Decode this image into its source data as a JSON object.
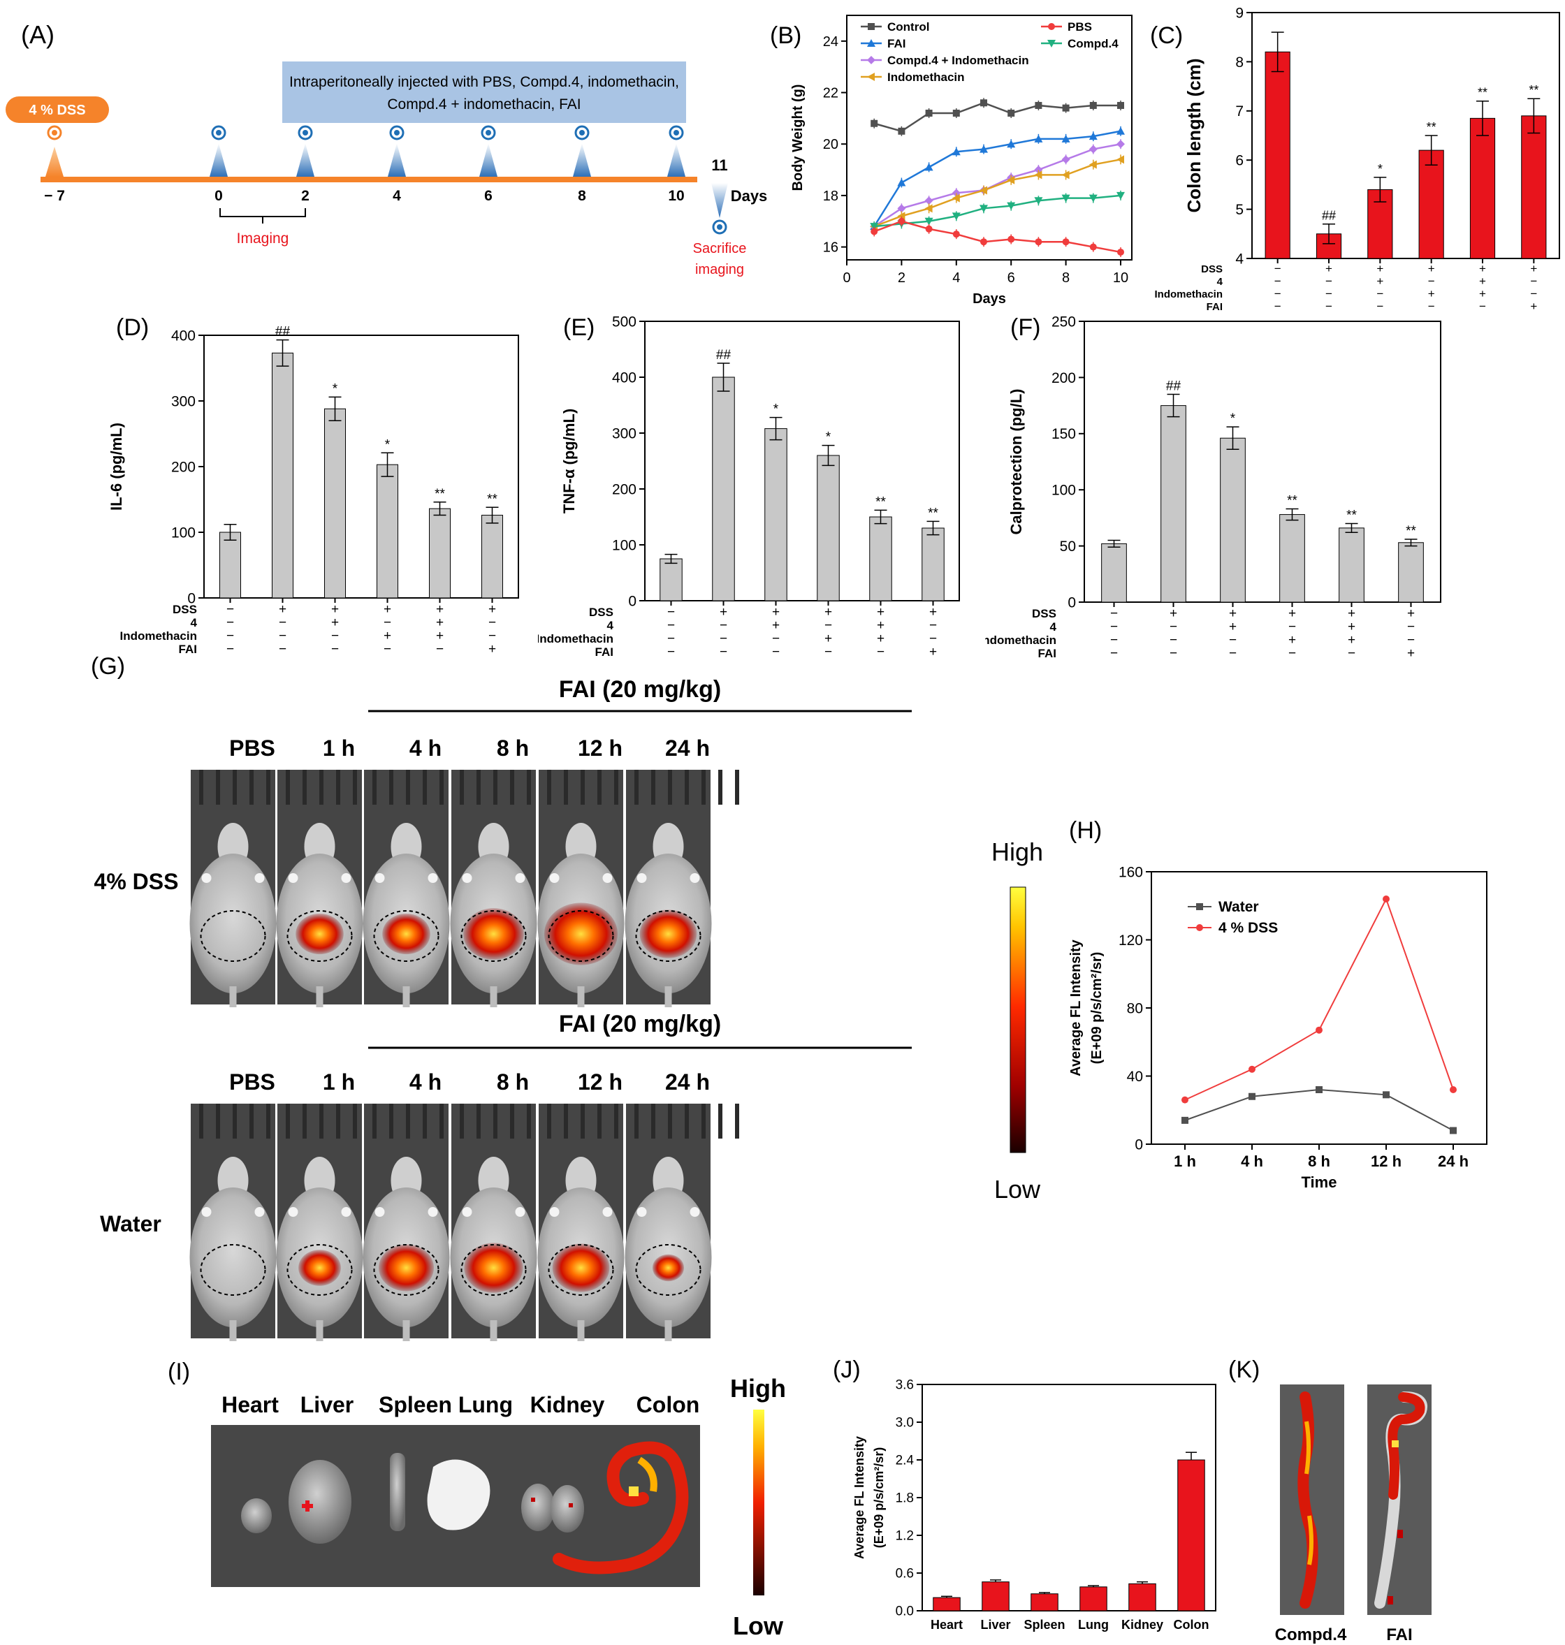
{
  "panel_labels": {
    "A": "(A)",
    "B": "(B)",
    "C": "(C)",
    "D": "(D)",
    "E": "(E)",
    "F": "(F)",
    "G": "(G)",
    "H": "(H)",
    "I": "(I)",
    "J": "(J)",
    "K": "(K)"
  },
  "panel_a": {
    "dss_label": "4 % DSS",
    "injection_text_1": "Intraperitoneally injected with PBS, Compd.4, indomethacin,",
    "injection_text_2": "Compd.4 + indomethacin, FAI",
    "ticks": [
      "− 7",
      "0",
      "2",
      "4",
      "6",
      "8",
      "10"
    ],
    "day11": "11",
    "days_label": "Days",
    "imaging_label": "Imaging",
    "sacrifice_1": "Sacrifice",
    "sacrifice_2": "imaging",
    "colors": {
      "timeline": "#f5832a",
      "marker": "#1f6fb5",
      "box": "#a9c4e4",
      "imaging": "#e8141c"
    }
  },
  "chart_data": [
    {
      "id": "B",
      "type": "line",
      "xlabel": "Days",
      "ylabel": "Body Weight (g)",
      "xlim": [
        0,
        10
      ],
      "ylim": [
        15.5,
        25
      ],
      "xticks": [
        0,
        2,
        4,
        6,
        8,
        10
      ],
      "yticks": [
        16,
        18,
        20,
        22,
        24
      ],
      "x": [
        1,
        2,
        3,
        4,
        5,
        6,
        7,
        8,
        9,
        10
      ],
      "legend": [
        "Control",
        "PBS",
        "FAI",
        "Compd.4",
        "Compd.4 + Indomethacin",
        "Indomethacin"
      ],
      "series": [
        {
          "name": "Control",
          "color": "#505050",
          "marker": "square",
          "values": [
            20.8,
            20.5,
            21.2,
            21.2,
            21.6,
            21.2,
            21.5,
            21.4,
            21.5,
            21.5
          ]
        },
        {
          "name": "FAI",
          "color": "#1f78d8",
          "marker": "triangle-up",
          "values": [
            16.8,
            18.5,
            19.1,
            19.7,
            19.8,
            20.0,
            20.2,
            20.2,
            20.3,
            20.5
          ]
        },
        {
          "name": "Compd.4 + Indomethacin",
          "color": "#b57ae8",
          "marker": "diamond",
          "values": [
            16.8,
            17.5,
            17.8,
            18.1,
            18.2,
            18.7,
            19.0,
            19.4,
            19.8,
            20.0
          ]
        },
        {
          "name": "Indomethacin",
          "color": "#e0a020",
          "marker": "triangle-left",
          "values": [
            16.8,
            17.2,
            17.5,
            17.9,
            18.2,
            18.6,
            18.8,
            18.8,
            19.2,
            19.4
          ]
        },
        {
          "name": "Compd.4",
          "color": "#20b080",
          "marker": "triangle-down",
          "values": [
            16.8,
            16.9,
            17.0,
            17.2,
            17.5,
            17.6,
            17.8,
            17.9,
            17.9,
            18.0
          ]
        },
        {
          "name": "PBS",
          "color": "#f03c3c",
          "marker": "circle",
          "values": [
            16.6,
            17.0,
            16.7,
            16.5,
            16.2,
            16.3,
            16.2,
            16.2,
            16.0,
            15.8
          ]
        }
      ]
    },
    {
      "id": "C",
      "type": "bar",
      "ylabel": "Colon length (cm)",
      "ylim": [
        4,
        9
      ],
      "yticks": [
        4,
        5,
        6,
        7,
        8,
        9
      ],
      "bar_color": "#e8141c",
      "values": [
        8.2,
        4.5,
        5.4,
        6.2,
        6.85,
        6.9
      ],
      "errors": [
        0.4,
        0.2,
        0.25,
        0.3,
        0.35,
        0.35
      ],
      "annotations": [
        "",
        "##",
        "*",
        "**",
        "**",
        "**"
      ],
      "row_labels": [
        "DSS",
        "4",
        "Indomethacin",
        "FAI"
      ],
      "rows": [
        [
          "−",
          "+",
          "+",
          "+",
          "+",
          "+"
        ],
        [
          "−",
          "−",
          "+",
          "−",
          "+",
          "−"
        ],
        [
          "−",
          "−",
          "−",
          "+",
          "+",
          "−"
        ],
        [
          "−",
          "−",
          "−",
          "−",
          "−",
          "+"
        ]
      ]
    },
    {
      "id": "D",
      "type": "bar",
      "ylabel": "IL-6 (pg/mL)",
      "ylim": [
        0,
        400
      ],
      "yticks": [
        0,
        100,
        200,
        300,
        400
      ],
      "bar_color": "#c8c8c8",
      "values": [
        100,
        373,
        288,
        203,
        136,
        126
      ],
      "errors": [
        12,
        20,
        18,
        18,
        10,
        12
      ],
      "annotations": [
        "",
        "##",
        "*",
        "*",
        "**",
        "**"
      ],
      "row_labels": [
        "DSS",
        "4",
        "Indomethacin",
        "FAI"
      ],
      "rows": [
        [
          "−",
          "+",
          "+",
          "+",
          "+",
          "+"
        ],
        [
          "−",
          "−",
          "+",
          "−",
          "+",
          "−"
        ],
        [
          "−",
          "−",
          "−",
          "+",
          "+",
          "−"
        ],
        [
          "−",
          "−",
          "−",
          "−",
          "−",
          "+"
        ]
      ]
    },
    {
      "id": "E",
      "type": "bar",
      "ylabel": "TNF-α (pg/mL)",
      "ylim": [
        0,
        500
      ],
      "yticks": [
        0,
        100,
        200,
        300,
        400,
        500
      ],
      "bar_color": "#c8c8c8",
      "values": [
        75,
        400,
        308,
        260,
        150,
        130
      ],
      "errors": [
        8,
        25,
        20,
        18,
        12,
        12
      ],
      "annotations": [
        "",
        "##",
        "*",
        "*",
        "**",
        "**"
      ],
      "row_labels": [
        "DSS",
        "4",
        "Indomethacin",
        "FAI"
      ],
      "rows": [
        [
          "−",
          "+",
          "+",
          "+",
          "+",
          "+"
        ],
        [
          "−",
          "−",
          "+",
          "−",
          "+",
          "−"
        ],
        [
          "−",
          "−",
          "−",
          "+",
          "+",
          "−"
        ],
        [
          "−",
          "−",
          "−",
          "−",
          "−",
          "+"
        ]
      ]
    },
    {
      "id": "F",
      "type": "bar",
      "ylabel": "Calprotection (pg/L)",
      "ylim": [
        0,
        250
      ],
      "yticks": [
        0,
        50,
        100,
        150,
        200,
        250
      ],
      "bar_color": "#c8c8c8",
      "values": [
        52,
        175,
        146,
        78,
        66,
        53
      ],
      "errors": [
        3,
        10,
        10,
        5,
        4,
        3
      ],
      "annotations": [
        "",
        "##",
        "*",
        "**",
        "**",
        "**"
      ],
      "row_labels": [
        "DSS",
        "4",
        "Indomethacin",
        "FAI"
      ],
      "rows": [
        [
          "−",
          "+",
          "+",
          "+",
          "+",
          "+"
        ],
        [
          "−",
          "−",
          "+",
          "−",
          "+",
          "−"
        ],
        [
          "−",
          "−",
          "−",
          "+",
          "+",
          "−"
        ],
        [
          "−",
          "−",
          "−",
          "−",
          "−",
          "+"
        ]
      ]
    },
    {
      "id": "H",
      "type": "line",
      "xlabel": "Time",
      "ylabel_1": "Average FL Intensity",
      "ylabel_2": "(E+09 p/s/cm²/sr)",
      "categories": [
        "1 h",
        "4 h",
        "8 h",
        "12 h",
        "24 h"
      ],
      "ylim": [
        0,
        160
      ],
      "yticks": [
        0,
        40,
        80,
        120,
        160
      ],
      "series": [
        {
          "name": "Water",
          "color": "#505050",
          "marker": "square",
          "values": [
            14,
            28,
            32,
            29,
            8
          ]
        },
        {
          "name": "4 % DSS",
          "color": "#f03c3c",
          "marker": "circle",
          "values": [
            26,
            44,
            67,
            144,
            32
          ]
        }
      ]
    },
    {
      "id": "J",
      "type": "bar",
      "ylabel_1": "Average FL Intensity",
      "ylabel_2": "(E+09 p/s/cm²/sr)",
      "categories": [
        "Heart",
        "Liver",
        "Spleen",
        "Lung",
        "Kidney",
        "Colon"
      ],
      "ylim": [
        0,
        3.6
      ],
      "yticks": [
        "0.0",
        "0.6",
        "1.2",
        "1.8",
        "2.4",
        "3.0",
        "3.6"
      ],
      "bar_color": "#e8141c",
      "values": [
        0.21,
        0.46,
        0.27,
        0.38,
        0.43,
        2.4
      ],
      "errors": [
        0.02,
        0.03,
        0.02,
        0.02,
        0.03,
        0.12
      ]
    }
  ],
  "panel_g": {
    "title": "FAI (20 mg/kg)",
    "columns": [
      "PBS",
      "1 h",
      "4 h",
      "8 h",
      "12 h",
      "24 h"
    ],
    "row1_label": "4% DSS",
    "row2_label": "Water",
    "scale_high": "High",
    "scale_low": "Low"
  },
  "panel_i": {
    "organs": [
      "Heart",
      "Liver",
      "Spleen Lung",
      "Kidney",
      "Colon"
    ],
    "scale_high": "High",
    "scale_low": "Low"
  },
  "panel_k": {
    "labels": [
      "Compd.4",
      "FAI"
    ]
  }
}
